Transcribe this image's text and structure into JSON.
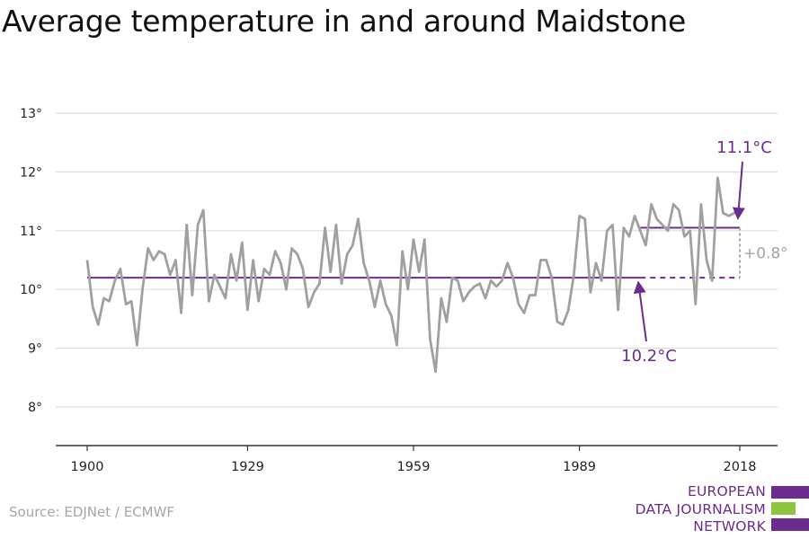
{
  "title": "Average temperature in and around Maidstone",
  "source": "Source: EDJNet / ECMWF",
  "logo_lines": [
    "EUROPEAN",
    "DATA JOURNALISM",
    "NETWORK"
  ],
  "colors": {
    "series": "#a0a0a0",
    "accent": "#6a2c8e",
    "grid": "#dddddd",
    "axis": "#333333",
    "annotation_grey": "#a6a6a6",
    "logo_green": "#8cc63f"
  },
  "chart_data": {
    "type": "line",
    "title": "Average temperature in and around Maidstone",
    "xlabel": "",
    "ylabel": "",
    "xlim": [
      1900,
      2018
    ],
    "ylim": [
      8,
      13
    ],
    "x_ticks": [
      1900,
      1929,
      1959,
      1989,
      2018
    ],
    "x_tick_labels": [
      "1900",
      "1929",
      "1959",
      "1989",
      "2018"
    ],
    "y_ticks": [
      8,
      9,
      10,
      11,
      12,
      13
    ],
    "y_tick_labels": [
      "8°",
      "9°",
      "10°",
      "11°",
      "12°",
      "13°"
    ],
    "grid": "horizontal",
    "x": [
      1900,
      1901,
      1902,
      1903,
      1904,
      1905,
      1906,
      1907,
      1908,
      1909,
      1910,
      1911,
      1912,
      1913,
      1914,
      1915,
      1916,
      1917,
      1918,
      1919,
      1920,
      1921,
      1922,
      1923,
      1924,
      1925,
      1926,
      1927,
      1928,
      1929,
      1930,
      1931,
      1932,
      1933,
      1934,
      1935,
      1936,
      1937,
      1938,
      1939,
      1940,
      1941,
      1942,
      1943,
      1944,
      1945,
      1946,
      1947,
      1948,
      1949,
      1950,
      1951,
      1952,
      1953,
      1954,
      1955,
      1956,
      1957,
      1958,
      1959,
      1960,
      1961,
      1962,
      1963,
      1964,
      1965,
      1966,
      1967,
      1968,
      1969,
      1970,
      1971,
      1972,
      1973,
      1974,
      1975,
      1976,
      1977,
      1978,
      1979,
      1980,
      1981,
      1982,
      1983,
      1984,
      1985,
      1986,
      1987,
      1988,
      1989,
      1990,
      1991,
      1992,
      1993,
      1994,
      1995,
      1996,
      1997,
      1998,
      1999,
      2000,
      2001,
      2002,
      2003,
      2004,
      2005,
      2006,
      2007,
      2008,
      2009,
      2010,
      2011,
      2012,
      2013,
      2014,
      2015,
      2016,
      2017,
      2018
    ],
    "series": [
      {
        "values": [
          10.5,
          9.7,
          9.4,
          9.85,
          9.8,
          10.15,
          10.35,
          9.75,
          9.8,
          9.05,
          10.0,
          10.7,
          10.5,
          10.65,
          10.6,
          10.25,
          10.5,
          9.6,
          11.1,
          9.9,
          11.1,
          11.35,
          9.8,
          10.25,
          10.05,
          9.85,
          10.6,
          10.15,
          10.8,
          9.65,
          10.5,
          9.8,
          10.35,
          10.25,
          10.65,
          10.45,
          10.0,
          10.7,
          10.6,
          10.35,
          9.7,
          9.95,
          10.1,
          11.05,
          10.3,
          11.1,
          10.1,
          10.6,
          10.75,
          11.2,
          10.45,
          10.15,
          9.7,
          10.15,
          9.75,
          9.55,
          9.05,
          10.65,
          10.0,
          10.85,
          10.3,
          10.85,
          9.15,
          8.6,
          9.85,
          9.45,
          10.2,
          10.15,
          9.8,
          9.95,
          10.05,
          10.1,
          9.85,
          10.15,
          10.05,
          10.15,
          10.45,
          10.2,
          9.75,
          9.6,
          9.9,
          9.9,
          10.5,
          10.5,
          10.2,
          9.45,
          9.4,
          9.65,
          10.25,
          11.25,
          11.2,
          9.95,
          10.45,
          10.15,
          11.0,
          11.1,
          9.65,
          11.05,
          10.9,
          11.25,
          11.0,
          10.75,
          11.45,
          11.2,
          11.1,
          11.0,
          11.45,
          11.35,
          10.9,
          11.0,
          9.75,
          11.45,
          10.5,
          10.15,
          11.9,
          11.3,
          11.25,
          11.3,
          11.4
        ]
      }
    ],
    "reference_lines": [
      {
        "label": "10.2°C",
        "value": 10.2,
        "x_start": 1900,
        "x_end": 2000,
        "dashed_extension_to": 2018
      },
      {
        "label": "11.1°C",
        "value": 11.05,
        "x_start": 2000,
        "x_end": 2018
      }
    ],
    "annotations": [
      {
        "text": "11.1°C",
        "points_to": [
          2018,
          11.1
        ]
      },
      {
        "text": "10.2°C",
        "points_to": [
          2000,
          10.2
        ]
      },
      {
        "text": "+0.8°",
        "spans": [
          10.2,
          11.05
        ],
        "at_x": 2018
      }
    ]
  }
}
